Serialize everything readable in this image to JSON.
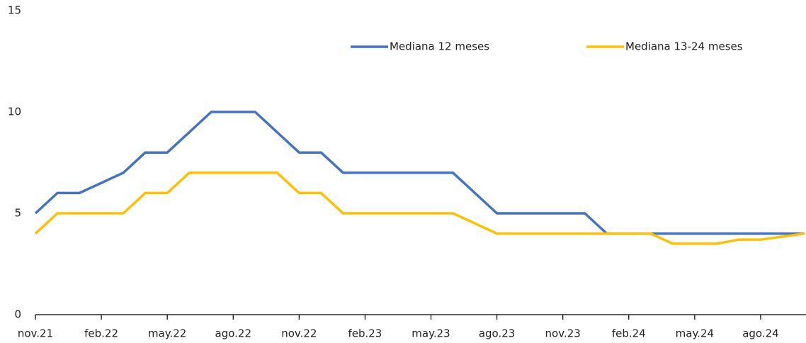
{
  "chart_data": {
    "type": "line",
    "categories": [
      "nov.21",
      null,
      null,
      "feb.22",
      null,
      null,
      "may.22",
      null,
      null,
      "ago.22",
      null,
      null,
      "nov.22",
      null,
      null,
      "feb.23",
      null,
      null,
      "may.23",
      null,
      null,
      "ago.23",
      null,
      null,
      "nov.23",
      null,
      null,
      "feb.24",
      null,
      null,
      "may.24",
      null,
      null,
      "ago.24",
      null,
      null
    ],
    "series": [
      {
        "name": "Mediana 12 meses",
        "color": "#4472c4",
        "values": [
          5,
          6,
          6,
          6.5,
          7,
          8,
          8,
          9,
          10,
          10,
          10,
          9,
          8,
          8,
          7,
          7,
          7,
          7,
          7,
          7,
          6,
          5,
          5,
          5,
          5,
          5,
          4,
          4,
          4,
          4,
          4,
          4,
          4,
          4,
          4,
          4
        ]
      },
      {
        "name": "Mediana 13-24 meses",
        "color": "#ffc000",
        "values": [
          4,
          5,
          5,
          5,
          5,
          6,
          6,
          7,
          7,
          7,
          7,
          7,
          6,
          6,
          5,
          5,
          5,
          5,
          5,
          5,
          4.5,
          4,
          4,
          4,
          4,
          4,
          4,
          4,
          4,
          3.5,
          3.5,
          3.5,
          3.7,
          3.7,
          3.85,
          4
        ]
      }
    ],
    "ylim": [
      0,
      15
    ],
    "yticks": [
      0,
      5,
      10,
      15
    ],
    "grid": false,
    "legend": "top"
  }
}
